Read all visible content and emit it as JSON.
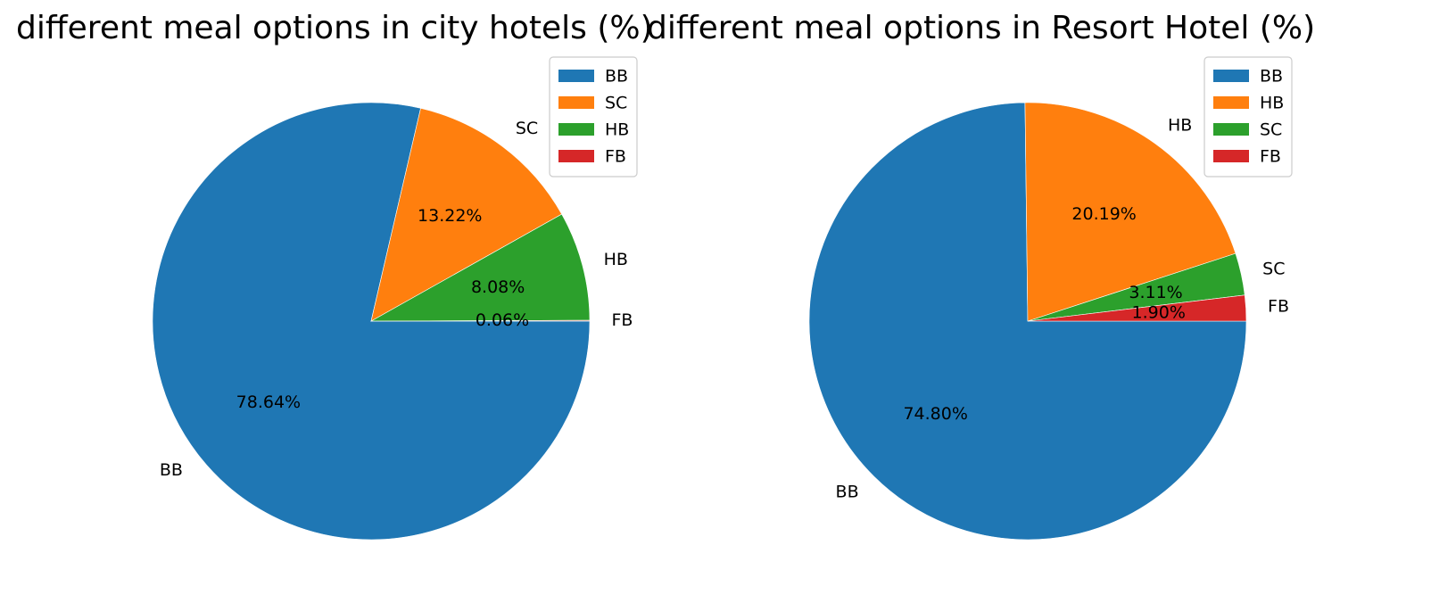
{
  "chart_data": [
    {
      "type": "pie",
      "title": "different meal options in city hotels (%)",
      "categories": [
        "BB",
        "SC",
        "HB",
        "FB"
      ],
      "values": [
        78.64,
        13.22,
        8.08,
        0.06
      ],
      "pct_labels": [
        "78.64%",
        "13.22%",
        "8.08%",
        "0.06%"
      ],
      "colors": [
        "#1f77b4",
        "#ff7f0e",
        "#2ca02c",
        "#d62728"
      ],
      "legend": [
        "BB",
        "SC",
        "HB",
        "FB"
      ],
      "legend_position": "upper right",
      "start_angle_deg": 0,
      "direction": "clockwise"
    },
    {
      "type": "pie",
      "title": "different meal options in Resort Hotel (%)",
      "categories": [
        "BB",
        "HB",
        "SC",
        "FB"
      ],
      "values": [
        74.8,
        20.19,
        3.11,
        1.9
      ],
      "pct_labels": [
        "74.80%",
        "20.19%",
        "3.11%",
        "1.90%"
      ],
      "colors": [
        "#1f77b4",
        "#ff7f0e",
        "#2ca02c",
        "#d62728"
      ],
      "legend": [
        "BB",
        "HB",
        "SC",
        "FB"
      ],
      "legend_position": "upper right",
      "start_angle_deg": 0,
      "direction": "clockwise"
    }
  ]
}
